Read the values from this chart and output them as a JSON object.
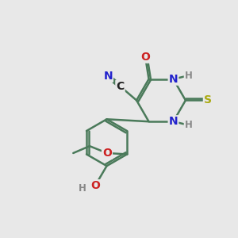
{
  "bg_color": "#e8e8e8",
  "bond_color": "#4a7a5a",
  "bond_width": 1.8,
  "colors": {
    "N": "#2222cc",
    "O": "#cc2222",
    "S": "#aaaa10",
    "C": "#222222",
    "H": "#888888",
    "bond": "#4a7a5a"
  },
  "font_size_atoms": 10,
  "font_size_small": 8.5
}
